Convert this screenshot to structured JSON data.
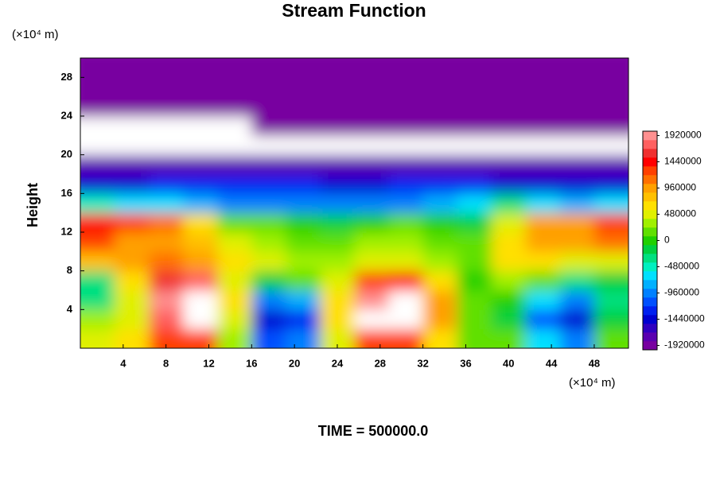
{
  "chart_data": {
    "type": "contour",
    "title": "Stream Function",
    "y_unit_label": "(×10⁴ m)",
    "x_unit_label": "(×10⁴ m)",
    "ylabel": "Height",
    "annotation": "TIME = 500000.0",
    "xlim": [
      0,
      51.2
    ],
    "ylim": [
      0,
      30
    ],
    "xticks": [
      4,
      8,
      12,
      16,
      20,
      24,
      28,
      32,
      36,
      40,
      44,
      48
    ],
    "yticks": [
      4,
      8,
      12,
      16,
      20,
      24,
      28
    ],
    "clim": [
      -2000000,
      2000000
    ],
    "cticks": [
      1920000,
      1440000,
      960000,
      480000,
      0,
      -480000,
      -960000,
      -1440000,
      -1920000
    ],
    "colors": [
      "#7800a0",
      "#5a00b0",
      "#3000c0",
      "#0000d0",
      "#0020f0",
      "#0050ff",
      "#0080ff",
      "#00b0ff",
      "#00e0ff",
      "#00f0c0",
      "#00e080",
      "#00d040",
      "#20d000",
      "#60e000",
      "#a0f000",
      "#e0f000",
      "#ffe000",
      "#ffc000",
      "#ffa000",
      "#ff7000",
      "#ff4000",
      "#ff0000",
      "#f03030",
      "#ff6060",
      "#ff9090"
    ],
    "under_color": "#7800a0",
    "over_color": "#ffffff",
    "x": [
      1.6,
      4.8,
      8,
      11.2,
      14.4,
      17.6,
      20.8,
      24,
      27.2,
      30.4,
      33.6,
      36.8,
      40,
      43.2,
      46.4,
      49.6
    ],
    "y": [
      1,
      3,
      5,
      7,
      9,
      11,
      13,
      15,
      17,
      19,
      21,
      23,
      25,
      27,
      29
    ],
    "z": [
      [
        400000,
        600000,
        1300000,
        1200000,
        300000,
        -1100000,
        -900000,
        500000,
        1300000,
        1200000,
        600000,
        200000,
        100000,
        -600000,
        -900000,
        200000
      ],
      [
        300000,
        400000,
        1700000,
        2100000,
        400000,
        -1500000,
        -1300000,
        600000,
        2100000,
        2000000,
        900000,
        200000,
        -200000,
        -1100000,
        -1500000,
        -200000
      ],
      [
        -400000,
        500000,
        1900000,
        2100000,
        600000,
        -1000000,
        -800000,
        700000,
        1900000,
        2000000,
        1000000,
        200000,
        0,
        -700000,
        -900000,
        -300000
      ],
      [
        -300000,
        600000,
        1600000,
        1700000,
        500000,
        -200000,
        100000,
        500000,
        1300000,
        1500000,
        600000,
        0,
        300000,
        100000,
        -300000,
        -200000
      ],
      [
        800000,
        900000,
        1100000,
        1000000,
        700000,
        400000,
        300000,
        300000,
        500000,
        500000,
        300000,
        200000,
        600000,
        700000,
        500000,
        400000
      ],
      [
        1200000,
        1000000,
        900000,
        800000,
        500000,
        300000,
        200000,
        200000,
        300000,
        300000,
        200000,
        100000,
        600000,
        900000,
        1000000,
        1100000
      ],
      [
        1400000,
        1200000,
        1100000,
        600000,
        200000,
        100000,
        0,
        -100000,
        0,
        100000,
        0,
        -100000,
        400000,
        900000,
        1000000,
        1300000
      ],
      [
        -500000,
        -600000,
        -700000,
        -800000,
        -900000,
        -900000,
        -1000000,
        -1000000,
        -900000,
        -900000,
        -800000,
        -700000,
        -400000,
        -700000,
        -800000,
        -700000
      ],
      [
        -1400000,
        -1400000,
        -1300000,
        -1300000,
        -1300000,
        -1300000,
        -1300000,
        -1400000,
        -1400000,
        -1300000,
        -1300000,
        -1300000,
        -1400000,
        -1500000,
        -1500000,
        -1500000
      ],
      [
        -1800000,
        -1800000,
        -1800000,
        -1800000,
        -1800000,
        -1800000,
        -1800000,
        -1800000,
        -1800000,
        -1800000,
        -1800000,
        -1800000,
        -1700000,
        -1700000,
        -1700000,
        -1700000
      ],
      [
        2100000,
        2100000,
        2100000,
        2100000,
        2100000,
        2100000,
        2100000,
        2100000,
        2100000,
        2100000,
        2100000,
        2100000,
        2100000,
        2100000,
        2100000,
        2100000
      ],
      [
        2100000,
        2100000,
        2100000,
        2100000,
        2100000,
        -2100000,
        -2100000,
        -1950000,
        -1950000,
        -1950000,
        -1950000,
        -2100000,
        -2100000,
        -2100000,
        -2100000,
        -2100000
      ],
      [
        -2100000,
        -2100000,
        -2100000,
        -2100000,
        -2100000,
        -2100000,
        -2100000,
        -2100000,
        -2100000,
        -2100000,
        -2100000,
        -2100000,
        -2100000,
        -2100000,
        -1950000,
        -1950000
      ],
      [
        -1950000,
        -1950000,
        -1950000,
        -2100000,
        -2100000,
        -2100000,
        -2100000,
        -2100000,
        -2100000,
        -2100000,
        -2100000,
        -2100000,
        -2100000,
        -1950000,
        -1950000,
        -1950000
      ],
      [
        -2100000,
        -2100000,
        -2100000,
        -2100000,
        -2100000,
        -2100000,
        -2100000,
        -2100000,
        -2100000,
        -2100000,
        -2100000,
        -2100000,
        -2100000,
        -2100000,
        -2100000,
        -2100000
      ]
    ]
  }
}
